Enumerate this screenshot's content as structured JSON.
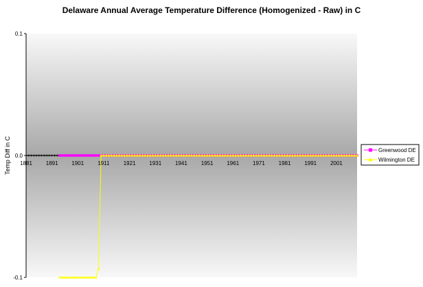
{
  "chart_data": {
    "type": "line",
    "title": "Delaware Annual Average Temperature Difference (Homogenized - Raw) in C",
    "xlabel": "",
    "ylabel": "Temp Diff in C",
    "xlim": [
      1881,
      2009
    ],
    "ylim": [
      -0.1,
      0.1
    ],
    "y_ticks": [
      "0.1",
      "0.0",
      "-0.1"
    ],
    "y_tick_values": [
      0.1,
      0.0,
      -0.1
    ],
    "x_tick_labels": [
      "1881",
      "1891",
      "1901",
      "1911",
      "1921",
      "1931",
      "1941",
      "1951",
      "1961",
      "1971",
      "1981",
      "1991",
      "2001"
    ],
    "x_tick_values": [
      1881,
      1891,
      1901,
      1911,
      1921,
      1931,
      1941,
      1951,
      1961,
      1971,
      1981,
      1991,
      2001
    ],
    "grid": false,
    "legend_position": "right",
    "background": "gray gradient",
    "baseline_series_color": "#000000",
    "series": [
      {
        "name": "Greenwood DE",
        "color": "#ff00ff",
        "marker": "square",
        "x_start": 1894,
        "x_end": 2009,
        "values_constant": 0.0
      },
      {
        "name": "Wilmington DE",
        "color": "#ffff00",
        "marker": "triangle",
        "segments": [
          {
            "x_start": 1894,
            "x_end": 1907,
            "value": -0.1
          },
          {
            "x": 1908,
            "value": -0.1
          },
          {
            "x": 1909,
            "value": -0.093
          },
          {
            "x": 1910,
            "value": 0.0
          },
          {
            "x_start": 1911,
            "x_end": 2009,
            "value": 0.0
          }
        ]
      }
    ]
  }
}
